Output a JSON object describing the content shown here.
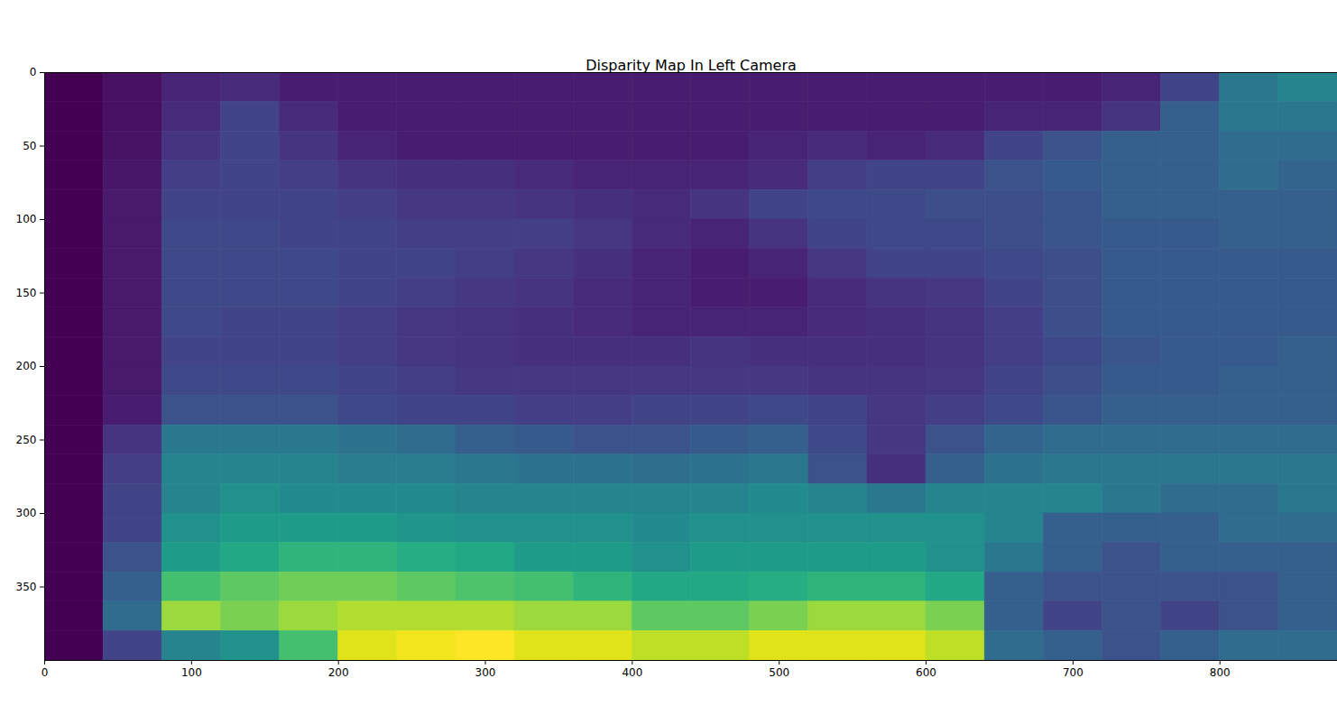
{
  "chart_data": {
    "type": "heatmap",
    "title": "Disparity Map In Left Camera",
    "xlim": [
      0,
      880
    ],
    "ylim": [
      400,
      0
    ],
    "xticks": [
      0,
      100,
      200,
      300,
      400,
      500,
      600,
      700,
      800
    ],
    "yticks": [
      0,
      50,
      100,
      150,
      200,
      250,
      300,
      350
    ],
    "color": "viridis",
    "cells": [
      [
        0,
        0.04,
        0.1,
        0.12,
        0.08,
        0.08,
        0.08,
        0.08,
        0.08,
        0.08,
        0.08,
        0.08,
        0.08,
        0.08,
        0.08,
        0.08,
        0.08,
        0.08,
        0.1,
        0.2,
        0.4,
        0.45
      ],
      [
        0,
        0.04,
        0.12,
        0.2,
        0.12,
        0.08,
        0.08,
        0.08,
        0.08,
        0.08,
        0.08,
        0.08,
        0.08,
        0.08,
        0.08,
        0.08,
        0.1,
        0.1,
        0.15,
        0.3,
        0.4,
        0.4
      ],
      [
        0,
        0.05,
        0.15,
        0.2,
        0.15,
        0.1,
        0.08,
        0.08,
        0.08,
        0.08,
        0.08,
        0.08,
        0.1,
        0.12,
        0.1,
        0.12,
        0.2,
        0.25,
        0.3,
        0.3,
        0.35,
        0.35
      ],
      [
        0,
        0.06,
        0.18,
        0.2,
        0.18,
        0.15,
        0.14,
        0.14,
        0.12,
        0.1,
        0.1,
        0.1,
        0.12,
        0.18,
        0.2,
        0.2,
        0.25,
        0.28,
        0.3,
        0.3,
        0.35,
        0.32
      ],
      [
        0,
        0.07,
        0.2,
        0.2,
        0.2,
        0.18,
        0.16,
        0.16,
        0.15,
        0.14,
        0.12,
        0.15,
        0.2,
        0.22,
        0.22,
        0.24,
        0.24,
        0.26,
        0.3,
        0.3,
        0.3,
        0.3
      ],
      [
        0,
        0.07,
        0.22,
        0.22,
        0.2,
        0.2,
        0.18,
        0.18,
        0.18,
        0.16,
        0.12,
        0.1,
        0.15,
        0.2,
        0.22,
        0.22,
        0.24,
        0.26,
        0.28,
        0.28,
        0.3,
        0.3
      ],
      [
        0,
        0.07,
        0.22,
        0.22,
        0.22,
        0.2,
        0.2,
        0.18,
        0.16,
        0.14,
        0.1,
        0.08,
        0.1,
        0.16,
        0.2,
        0.2,
        0.22,
        0.24,
        0.28,
        0.28,
        0.28,
        0.28
      ],
      [
        0,
        0.07,
        0.22,
        0.22,
        0.22,
        0.2,
        0.18,
        0.16,
        0.15,
        0.12,
        0.1,
        0.08,
        0.08,
        0.12,
        0.15,
        0.16,
        0.2,
        0.24,
        0.28,
        0.28,
        0.28,
        0.28
      ],
      [
        0,
        0.07,
        0.22,
        0.2,
        0.2,
        0.18,
        0.16,
        0.15,
        0.14,
        0.12,
        0.1,
        0.1,
        0.1,
        0.12,
        0.14,
        0.15,
        0.18,
        0.24,
        0.28,
        0.28,
        0.28,
        0.28
      ],
      [
        0,
        0.07,
        0.2,
        0.2,
        0.2,
        0.18,
        0.16,
        0.15,
        0.14,
        0.14,
        0.14,
        0.15,
        0.14,
        0.14,
        0.14,
        0.15,
        0.18,
        0.22,
        0.26,
        0.28,
        0.28,
        0.3
      ],
      [
        0,
        0.07,
        0.22,
        0.22,
        0.22,
        0.2,
        0.18,
        0.16,
        0.16,
        0.16,
        0.16,
        0.16,
        0.16,
        0.15,
        0.15,
        0.16,
        0.2,
        0.24,
        0.28,
        0.28,
        0.3,
        0.3
      ],
      [
        0,
        0.08,
        0.25,
        0.25,
        0.25,
        0.22,
        0.2,
        0.2,
        0.18,
        0.18,
        0.2,
        0.2,
        0.22,
        0.2,
        0.16,
        0.18,
        0.22,
        0.26,
        0.3,
        0.3,
        0.3,
        0.3
      ],
      [
        0,
        0.15,
        0.4,
        0.4,
        0.4,
        0.38,
        0.35,
        0.3,
        0.28,
        0.25,
        0.25,
        0.28,
        0.3,
        0.22,
        0.16,
        0.25,
        0.32,
        0.35,
        0.35,
        0.35,
        0.35,
        0.35
      ],
      [
        0,
        0.18,
        0.45,
        0.45,
        0.45,
        0.42,
        0.42,
        0.4,
        0.38,
        0.38,
        0.36,
        0.38,
        0.4,
        0.25,
        0.14,
        0.3,
        0.38,
        0.4,
        0.4,
        0.4,
        0.4,
        0.4
      ],
      [
        0,
        0.2,
        0.45,
        0.5,
        0.48,
        0.48,
        0.48,
        0.45,
        0.45,
        0.45,
        0.45,
        0.45,
        0.48,
        0.45,
        0.4,
        0.45,
        0.45,
        0.45,
        0.4,
        0.35,
        0.35,
        0.4
      ],
      [
        0,
        0.2,
        0.5,
        0.55,
        0.55,
        0.55,
        0.52,
        0.5,
        0.5,
        0.5,
        0.48,
        0.5,
        0.5,
        0.5,
        0.5,
        0.5,
        0.45,
        0.3,
        0.3,
        0.3,
        0.35,
        0.35
      ],
      [
        0,
        0.25,
        0.55,
        0.6,
        0.65,
        0.65,
        0.62,
        0.6,
        0.55,
        0.55,
        0.5,
        0.55,
        0.55,
        0.55,
        0.55,
        0.5,
        0.4,
        0.3,
        0.25,
        0.3,
        0.3,
        0.3
      ],
      [
        0,
        0.3,
        0.7,
        0.75,
        0.78,
        0.78,
        0.75,
        0.72,
        0.7,
        0.65,
        0.6,
        0.6,
        0.62,
        0.65,
        0.65,
        0.6,
        0.3,
        0.25,
        0.25,
        0.25,
        0.25,
        0.3
      ],
      [
        0,
        0.35,
        0.85,
        0.8,
        0.85,
        0.88,
        0.88,
        0.88,
        0.85,
        0.85,
        0.75,
        0.75,
        0.8,
        0.85,
        0.85,
        0.8,
        0.3,
        0.2,
        0.25,
        0.2,
        0.25,
        0.3
      ],
      [
        0,
        0.2,
        0.45,
        0.5,
        0.7,
        0.95,
        0.98,
        1,
        0.95,
        0.95,
        0.9,
        0.9,
        0.95,
        0.95,
        0.95,
        0.9,
        0.35,
        0.3,
        0.25,
        0.3,
        0.35,
        0.35
      ]
    ]
  }
}
